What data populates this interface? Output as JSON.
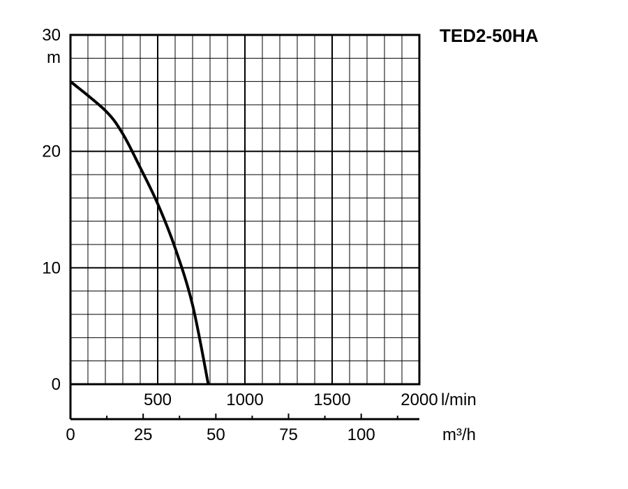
{
  "chart_data": {
    "type": "line",
    "title": "TED2-50HA",
    "y_axis": {
      "unit": "m",
      "range": [
        0,
        30
      ],
      "tick_values": [
        0,
        10,
        20,
        30
      ],
      "tick_labels": [
        "0",
        "10",
        "20",
        "30"
      ]
    },
    "x_axis_primary": {
      "unit": "l/min",
      "range": [
        0,
        2000
      ],
      "tick_values": [
        500,
        1000,
        1500,
        2000
      ],
      "tick_labels": [
        "500",
        "1000",
        "1500",
        "2000"
      ]
    },
    "x_axis_secondary": {
      "unit": "m³/h",
      "range": [
        0,
        120
      ],
      "tick_values": [
        0,
        25,
        50,
        75,
        100
      ],
      "tick_labels": [
        "0",
        "25",
        "50",
        "75",
        "100"
      ]
    },
    "grid": true,
    "series": [
      {
        "x_unit": "l/min",
        "x": [
          0,
          200,
          300,
          400,
          500,
          600,
          700,
          790
        ],
        "y": [
          26,
          23.5,
          21.5,
          18.6,
          15.5,
          11.7,
          6.8,
          0
        ]
      }
    ]
  }
}
